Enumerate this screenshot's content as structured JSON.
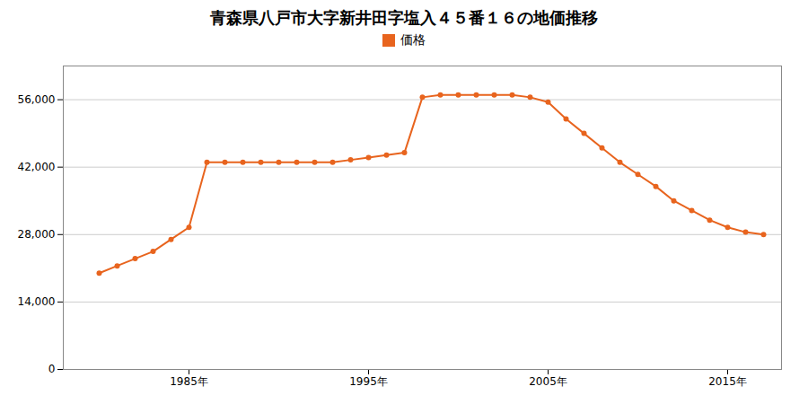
{
  "chart_data": {
    "type": "line",
    "title": "青森県八戸市大字新井田字塩入４５番１６の地価推移",
    "x": [
      1980,
      1981,
      1982,
      1983,
      1984,
      1985,
      1986,
      1987,
      1988,
      1989,
      1990,
      1991,
      1992,
      1993,
      1994,
      1995,
      1996,
      1997,
      1998,
      1999,
      2000,
      2001,
      2002,
      2003,
      2004,
      2005,
      2006,
      2007,
      2008,
      2009,
      2010,
      2011,
      2012,
      2013,
      2014,
      2015,
      2016,
      2017
    ],
    "series": [
      {
        "name": "価格",
        "color": "#e8641e",
        "marker": "circle",
        "values": [
          20000,
          21500,
          23000,
          24500,
          27000,
          29500,
          43000,
          43000,
          43000,
          43000,
          43000,
          43000,
          43000,
          43000,
          43500,
          44000,
          44500,
          45000,
          56500,
          57000,
          57000,
          57000,
          57000,
          57000,
          56500,
          55500,
          52000,
          49000,
          46000,
          43000,
          40500,
          38000,
          35000,
          33000,
          31000,
          29500,
          28500,
          28000
        ]
      }
    ],
    "xlim": [
      1978,
      2018
    ],
    "xticks": [
      {
        "value": 1985,
        "label": "1985年"
      },
      {
        "value": 1995,
        "label": "1995年"
      },
      {
        "value": 2005,
        "label": "2005年"
      },
      {
        "value": 2015,
        "label": "2015年"
      }
    ],
    "ylim": [
      0,
      63000
    ],
    "yticks": [
      0,
      {
        "value": 14000,
        "label": "14,000"
      },
      {
        "value": 28000,
        "label": "28,000"
      },
      {
        "value": 42000,
        "label": "42,000"
      },
      {
        "value": 56000,
        "label": "56,000"
      }
    ],
    "grid": true,
    "legend": "top"
  }
}
